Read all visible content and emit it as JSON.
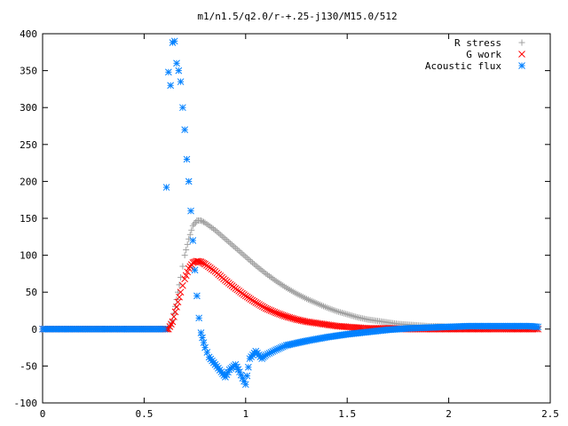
{
  "chart_data": {
    "type": "scatter",
    "title": "m1/n1.5/q2.0/r-+.25-j130/M15.0/512",
    "xlabel": "",
    "ylabel": "",
    "xlim": [
      0,
      2.5
    ],
    "ylim": [
      -100,
      400
    ],
    "x_ticks": [
      "0",
      "0.5",
      "1",
      "1.5",
      "2",
      "2.5"
    ],
    "y_ticks": [
      "400",
      "350",
      "300",
      "250",
      "200",
      "150",
      "100",
      "50",
      "0",
      "-50",
      "-100"
    ],
    "grid": false,
    "legend_position": "top-right",
    "series": [
      {
        "name": "R stress",
        "marker": "plus",
        "color": "#a0a0a0",
        "points": [
          [
            0.0,
            0
          ],
          [
            0.1,
            0
          ],
          [
            0.2,
            0
          ],
          [
            0.3,
            0
          ],
          [
            0.4,
            0
          ],
          [
            0.5,
            0
          ],
          [
            0.6,
            0
          ],
          [
            0.62,
            0
          ],
          [
            0.64,
            12
          ],
          [
            0.66,
            40
          ],
          [
            0.68,
            70
          ],
          [
            0.7,
            100
          ],
          [
            0.72,
            122
          ],
          [
            0.74,
            140
          ],
          [
            0.76,
            147
          ],
          [
            0.78,
            147
          ],
          [
            0.8,
            144
          ],
          [
            0.85,
            134
          ],
          [
            0.9,
            122
          ],
          [
            0.95,
            110
          ],
          [
            1.0,
            98
          ],
          [
            1.05,
            86
          ],
          [
            1.1,
            75
          ],
          [
            1.15,
            65
          ],
          [
            1.2,
            56
          ],
          [
            1.25,
            48
          ],
          [
            1.3,
            41
          ],
          [
            1.35,
            35
          ],
          [
            1.4,
            29
          ],
          [
            1.45,
            24
          ],
          [
            1.5,
            20
          ],
          [
            1.55,
            16
          ],
          [
            1.6,
            13
          ],
          [
            1.65,
            11
          ],
          [
            1.7,
            9
          ],
          [
            1.75,
            7
          ],
          [
            1.8,
            6
          ],
          [
            1.85,
            5
          ],
          [
            1.9,
            4
          ],
          [
            1.95,
            4
          ],
          [
            2.0,
            3
          ],
          [
            2.05,
            3
          ],
          [
            2.1,
            3
          ],
          [
            2.15,
            3
          ],
          [
            2.2,
            3
          ],
          [
            2.25,
            3
          ],
          [
            2.3,
            3
          ],
          [
            2.35,
            2
          ],
          [
            2.4,
            2
          ],
          [
            2.44,
            2
          ]
        ]
      },
      {
        "name": "G work",
        "marker": "cross",
        "color": "#ff0000",
        "points": [
          [
            0.0,
            0
          ],
          [
            0.1,
            0
          ],
          [
            0.2,
            0
          ],
          [
            0.3,
            0
          ],
          [
            0.4,
            0
          ],
          [
            0.5,
            0
          ],
          [
            0.6,
            0
          ],
          [
            0.62,
            0
          ],
          [
            0.64,
            10
          ],
          [
            0.66,
            30
          ],
          [
            0.68,
            50
          ],
          [
            0.7,
            68
          ],
          [
            0.72,
            82
          ],
          [
            0.74,
            90
          ],
          [
            0.76,
            92
          ],
          [
            0.78,
            91
          ],
          [
            0.8,
            88
          ],
          [
            0.85,
            78
          ],
          [
            0.9,
            66
          ],
          [
            0.95,
            55
          ],
          [
            1.0,
            45
          ],
          [
            1.05,
            36
          ],
          [
            1.1,
            28
          ],
          [
            1.15,
            22
          ],
          [
            1.2,
            17
          ],
          [
            1.25,
            13
          ],
          [
            1.3,
            10
          ],
          [
            1.35,
            8
          ],
          [
            1.4,
            6
          ],
          [
            1.45,
            4
          ],
          [
            1.5,
            3
          ],
          [
            1.55,
            2
          ],
          [
            1.6,
            1
          ],
          [
            1.7,
            1
          ],
          [
            1.8,
            0
          ],
          [
            1.9,
            0
          ],
          [
            2.0,
            0
          ],
          [
            2.1,
            0
          ],
          [
            2.2,
            0
          ],
          [
            2.3,
            0
          ],
          [
            2.4,
            0
          ],
          [
            2.44,
            0
          ]
        ]
      },
      {
        "name": "Acoustic flux",
        "marker": "star",
        "color": "#0080ff",
        "points": [
          [
            0.0,
            0
          ],
          [
            0.1,
            0
          ],
          [
            0.2,
            0
          ],
          [
            0.3,
            0
          ],
          [
            0.4,
            0
          ],
          [
            0.5,
            0
          ],
          [
            0.6,
            0
          ],
          [
            0.61,
            192
          ],
          [
            0.62,
            348
          ],
          [
            0.63,
            330
          ],
          [
            0.64,
            388
          ],
          [
            0.65,
            390
          ],
          [
            0.66,
            360
          ],
          [
            0.67,
            350
          ],
          [
            0.68,
            335
          ],
          [
            0.69,
            300
          ],
          [
            0.7,
            270
          ],
          [
            0.71,
            230
          ],
          [
            0.72,
            200
          ],
          [
            0.73,
            160
          ],
          [
            0.74,
            120
          ],
          [
            0.75,
            80
          ],
          [
            0.76,
            45
          ],
          [
            0.77,
            15
          ],
          [
            0.78,
            -5
          ],
          [
            0.8,
            -25
          ],
          [
            0.82,
            -38
          ],
          [
            0.85,
            -48
          ],
          [
            0.88,
            -58
          ],
          [
            0.9,
            -65
          ],
          [
            0.92,
            -55
          ],
          [
            0.95,
            -48
          ],
          [
            0.97,
            -58
          ],
          [
            1.0,
            -75
          ],
          [
            1.02,
            -40
          ],
          [
            1.05,
            -30
          ],
          [
            1.08,
            -40
          ],
          [
            1.1,
            -35
          ],
          [
            1.15,
            -28
          ],
          [
            1.2,
            -22
          ],
          [
            1.3,
            -16
          ],
          [
            1.4,
            -11
          ],
          [
            1.5,
            -7
          ],
          [
            1.6,
            -4
          ],
          [
            1.7,
            -1
          ],
          [
            1.8,
            1
          ],
          [
            1.9,
            2
          ],
          [
            2.0,
            3
          ],
          [
            2.1,
            4
          ],
          [
            2.2,
            4
          ],
          [
            2.3,
            4
          ],
          [
            2.4,
            4
          ],
          [
            2.44,
            3
          ]
        ]
      }
    ]
  }
}
